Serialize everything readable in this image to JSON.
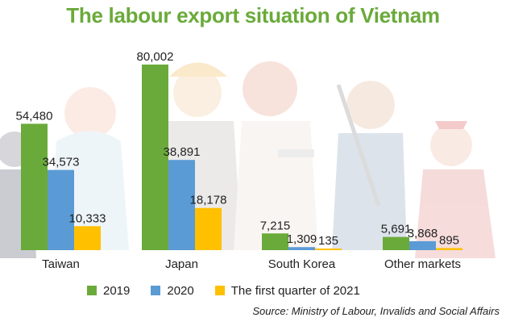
{
  "title": "The labour export situation of Vietnam",
  "colors": {
    "title": "#6aaa3a",
    "series": [
      "#6aaa3a",
      "#5b9bd5",
      "#ffc000"
    ]
  },
  "chart_data": {
    "type": "bar",
    "title": "The labour export situation of Vietnam",
    "categories": [
      "Taiwan",
      "Japan",
      "South Korea",
      "Other markets"
    ],
    "series": [
      {
        "name": "2019",
        "values": [
          54480,
          80002,
          7215,
          5691
        ],
        "labels": [
          "54,480",
          "80,002",
          "7,215",
          "5,691"
        ]
      },
      {
        "name": "2020",
        "values": [
          34573,
          38891,
          1309,
          3868
        ],
        "labels": [
          "34,573",
          "38,891",
          "1,309",
          "3,868"
        ]
      },
      {
        "name": "The first quarter of 2021",
        "values": [
          10333,
          18178,
          135,
          895
        ],
        "labels": [
          "10,333",
          "18,178",
          "135",
          "895"
        ]
      }
    ],
    "legend": "bottom",
    "grid": false
  },
  "legend": [
    "2019",
    "2020",
    "The first quarter of 2021"
  ],
  "source": "Source: Ministry of Labour, Invalids and Social Affairs"
}
